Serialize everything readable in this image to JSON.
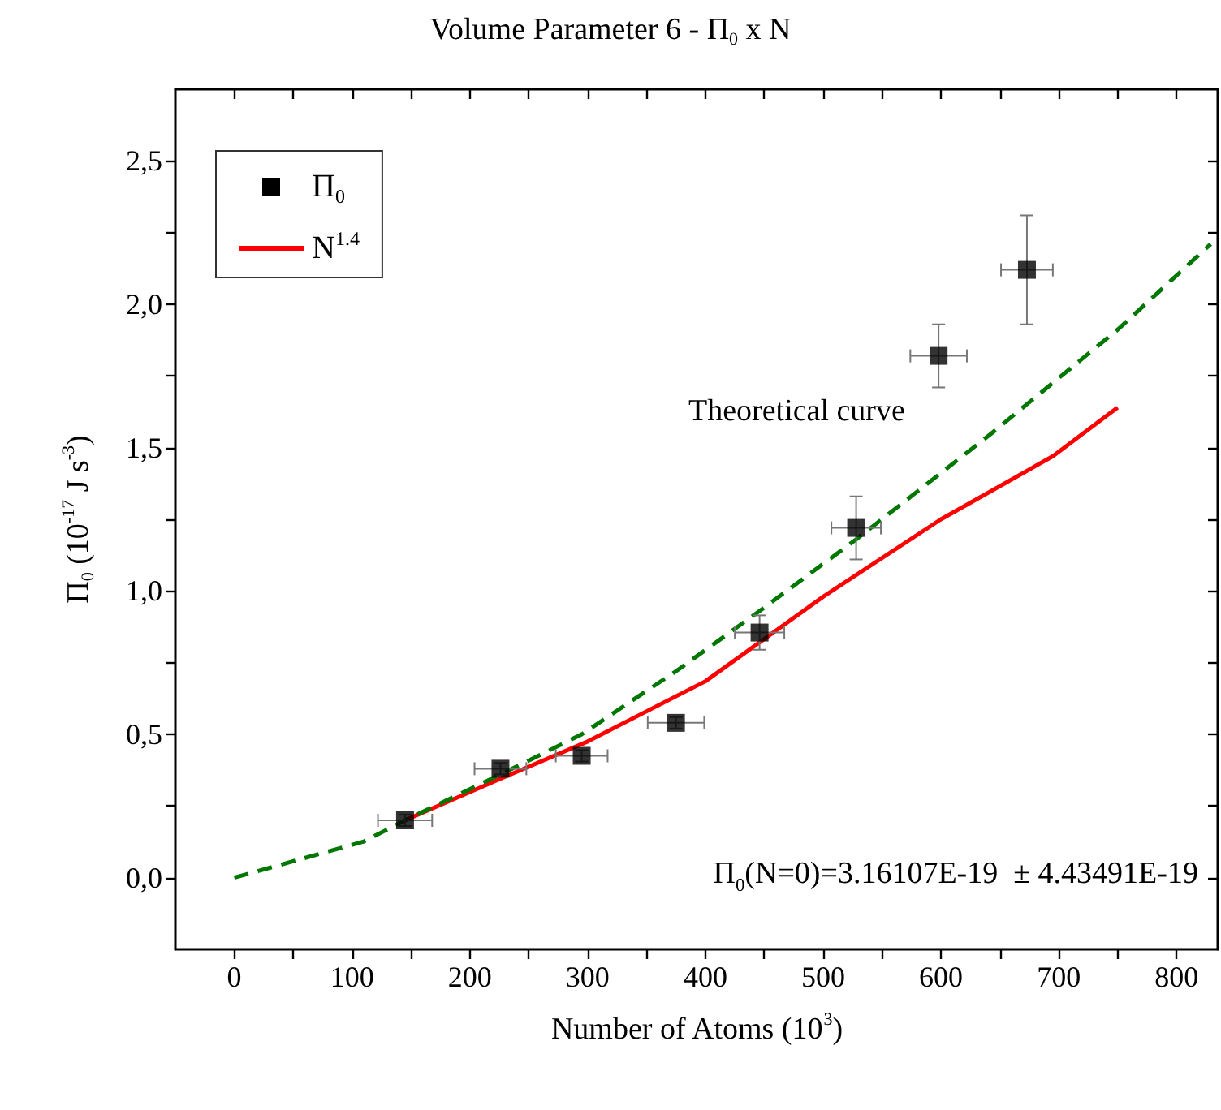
{
  "chart_data": {
    "type": "scatter",
    "title": "Volume Parameter 6 - Π$_{0}$ x N",
    "xlabel": "Number of Atoms (10$^{3}$)",
    "ylabel": "Π$_{0}$ (10$^{-17}$ J s$^{-3}$)",
    "xlim": [
      -50,
      835
    ],
    "xticks": [
      0,
      {
        "value": 50,
        "label": null
      },
      100,
      {
        "value": 150,
        "label": null
      },
      200,
      {
        "value": 250,
        "label": null
      },
      300,
      {
        "value": 350,
        "label": null
      },
      400,
      {
        "value": 450,
        "label": null
      },
      500,
      {
        "value": 550,
        "label": null
      },
      600,
      {
        "value": 650,
        "label": null
      },
      700,
      {
        "value": 750,
        "label": null
      },
      800
    ],
    "ylim": [
      -0.25,
      2.75
    ],
    "yticks": [
      {
        "value": 0,
        "label": "0,0"
      },
      {
        "value": 0.25,
        "label": null
      },
      {
        "value": 0.5,
        "label": "0,5"
      },
      {
        "value": 0.75,
        "label": null
      },
      {
        "value": 1,
        "label": "1,0"
      },
      {
        "value": 1.25,
        "label": null
      },
      {
        "value": 1.5,
        "label": "1,5"
      },
      {
        "value": 1.75,
        "label": null
      },
      {
        "value": 2,
        "label": "2,0"
      },
      {
        "value": 2.25,
        "label": null
      },
      {
        "value": 2.5,
        "label": "2,5"
      }
    ],
    "grid": false,
    "legend": "top left",
    "series": [
      {
        "name": "Π$_{0}$",
        "marker": "square",
        "color": "#000000",
        "x": [
          145,
          226,
          295,
          375,
          446,
          528,
          598,
          673
        ],
        "values": [
          0.2,
          0.38,
          0.425,
          0.54,
          0.855,
          1.22,
          1.82,
          2.12
        ],
        "errors": [
          0.02,
          0.02,
          0.02,
          0.02,
          0.06,
          0.11,
          0.11,
          0.19
        ],
        "xerrors": [
          23,
          22,
          22,
          24,
          21,
          21,
          24,
          22
        ]
      },
      {
        "name": "N$^{1.4}$",
        "type": "line",
        "marker": "none",
        "line_style": "solid",
        "color": "#ff0000",
        "x": [
          145,
          226,
          300,
          400,
          500,
          600,
          695,
          750
        ],
        "values": [
          0.2,
          0.345,
          0.475,
          0.685,
          0.98,
          1.25,
          1.47,
          1.64
        ]
      },
      {
        "type": "line",
        "marker": "none",
        "line_style": "dashed",
        "color": "#007700",
        "x": [
          0,
          110,
          145,
          226,
          295,
          375,
          446,
          528,
          643,
          751,
          829
        ],
        "values": [
          0,
          0.126,
          0.2,
          0.36,
          0.5,
          0.72,
          0.93,
          1.18,
          1.55,
          1.915,
          2.21
        ]
      }
    ],
    "annotations": [
      "Theoretical curve",
      "Π$_{0}$(N=0)=3.16107E-19  ± 4.43491E-19"
    ]
  }
}
